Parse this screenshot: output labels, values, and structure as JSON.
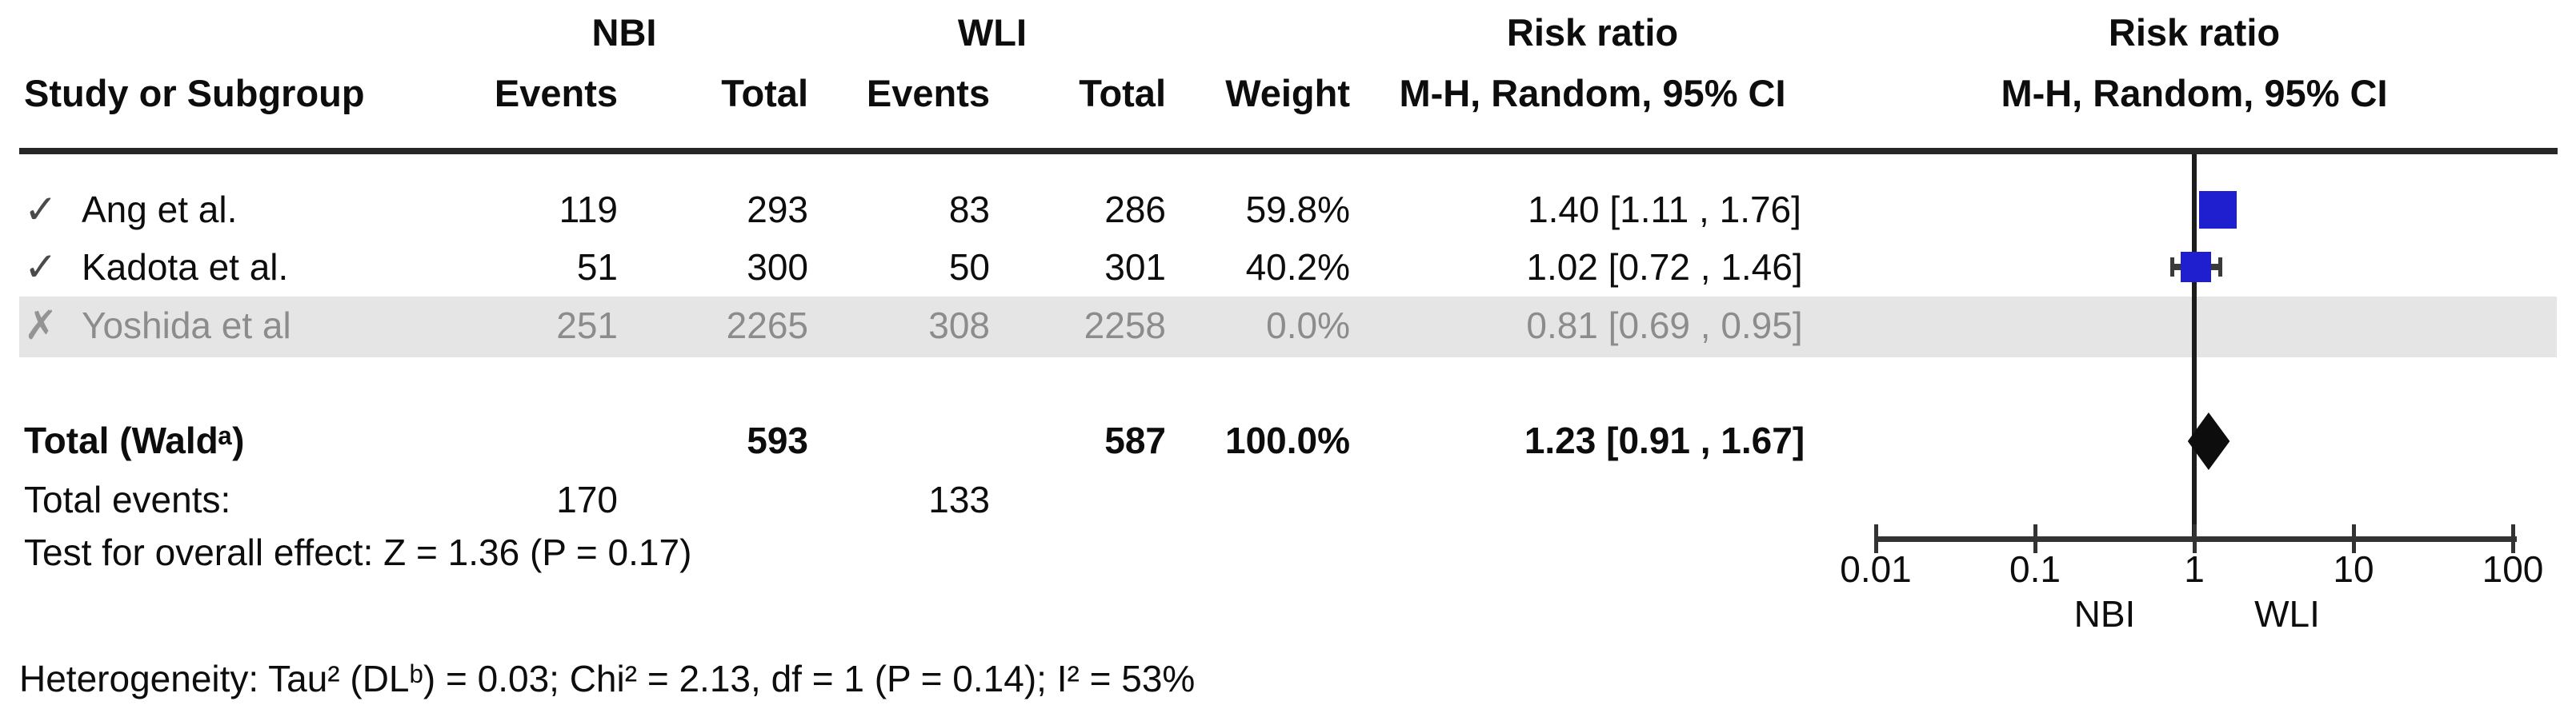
{
  "header": {
    "group_nbi": "NBI",
    "group_wli": "WLI",
    "rr_text_col_line1": "Risk ratio",
    "rr_text_col_line2": "M-H, Random, 95% CI",
    "rr_plot_col_line1": "Risk ratio",
    "rr_plot_col_line2": "M-H, Random, 95% CI",
    "col_study": "Study or Subgroup",
    "col_events_nbi": "Events",
    "col_total_nbi": "Total",
    "col_events_wli": "Events",
    "col_total_wli": "Total",
    "col_weight": "Weight"
  },
  "chart_data": {
    "type": "scatter",
    "subtype": "forest-plot",
    "x_scale": "log10",
    "x_ticks": [
      "0.01",
      "0.1",
      "1",
      "10",
      "100"
    ],
    "x_tick_values": [
      0.01,
      0.1,
      1,
      10,
      100
    ],
    "x_range": [
      0.01,
      100
    ],
    "null_line_value": 1,
    "x_axis_left_label": "NBI",
    "x_axis_right_label": "WLI",
    "legend_position": "none",
    "grid": false,
    "studies": [
      {
        "included": true,
        "icon": "✓",
        "name": "Ang et al.",
        "events_nbi": "119",
        "total_nbi": "293",
        "events_wli": "83",
        "total_wli": "286",
        "weight": "59.8%",
        "rr_text": "1.40 [1.11 , 1.76]",
        "rr": 1.4,
        "ci_low": 1.11,
        "ci_high": 1.76,
        "marker_px": 47
      },
      {
        "included": true,
        "icon": "✓",
        "name": "Kadota et al.",
        "events_nbi": "51",
        "total_nbi": "300",
        "events_wli": "50",
        "total_wli": "301",
        "weight": "40.2%",
        "rr_text": "1.02 [0.72 , 1.46]",
        "rr": 1.02,
        "ci_low": 0.72,
        "ci_high": 1.46,
        "marker_px": 38
      },
      {
        "included": false,
        "icon": "✗",
        "name": "Yoshida et al",
        "events_nbi": "251",
        "total_nbi": "2265",
        "events_wli": "308",
        "total_wli": "2258",
        "weight": "0.0%",
        "rr_text": "0.81 [0.69 , 0.95]",
        "rr": 0.81,
        "ci_low": 0.69,
        "ci_high": 0.95,
        "marker_px": 0
      }
    ],
    "total": {
      "label": "Total (Waldᵃ)",
      "total_nbi": "593",
      "total_wli": "587",
      "weight": "100.0%",
      "rr_text": "1.23 [0.91 , 1.67]",
      "rr": 1.23,
      "ci_low": 0.91,
      "ci_high": 1.67
    }
  },
  "footer": {
    "total_events_label": "Total events:",
    "total_events_nbi": "170",
    "total_events_wli": "133",
    "overall_effect": "Test for overall effect: Z = 1.36 (P = 0.17)",
    "heterogeneity": "Heterogeneity: Tau² (DLᵇ) = 0.03; Chi² = 2.13, df = 1 (P = 0.14); I² = 53%"
  },
  "colors": {
    "marker_blue": "#1f1fd0",
    "diamond_black": "#0d0d0d",
    "excluded_text_gray": "#8c8c8c",
    "excluded_band_gray": "#e5e5e5",
    "line_dark": "#262626"
  }
}
